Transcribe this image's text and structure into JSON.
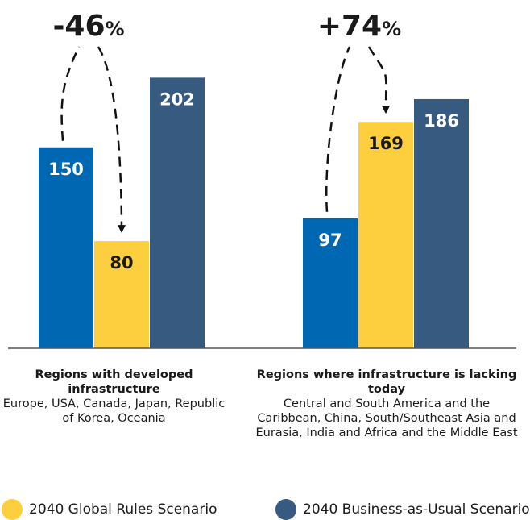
{
  "chart_data": {
    "type": "bar",
    "categories": [
      {
        "title": "Regions with developed infrastructure",
        "subtitle": "Europe, USA, Canada, Japan, Republic of Korea, Oceania",
        "change_label": "-46",
        "change_unit": "%"
      },
      {
        "title": "Regions where infrastructure is lacking today",
        "subtitle": "Central and South America and the Caribbean, China, South/Southeast Asia and Eurasia, India and Africa and the Middle East",
        "change_label": "+74",
        "change_unit": "%"
      }
    ],
    "series": [
      {
        "values": [
          150,
          97
        ],
        "color": "#0068b3"
      },
      {
        "name": "2040 Global Rules Scenario",
        "values": [
          80,
          169
        ],
        "color": "#fdcf3f"
      },
      {
        "name": "2040 Business-as-Usual Scenario",
        "values": [
          202,
          186
        ],
        "color": "#365a80"
      }
    ],
    "value_labels": [
      [
        "150",
        "97"
      ],
      [
        "80",
        "169"
      ],
      [
        "202",
        "186"
      ]
    ],
    "ylim": [
      0,
      260
    ],
    "grid": false,
    "legend_position": "bottom"
  }
}
